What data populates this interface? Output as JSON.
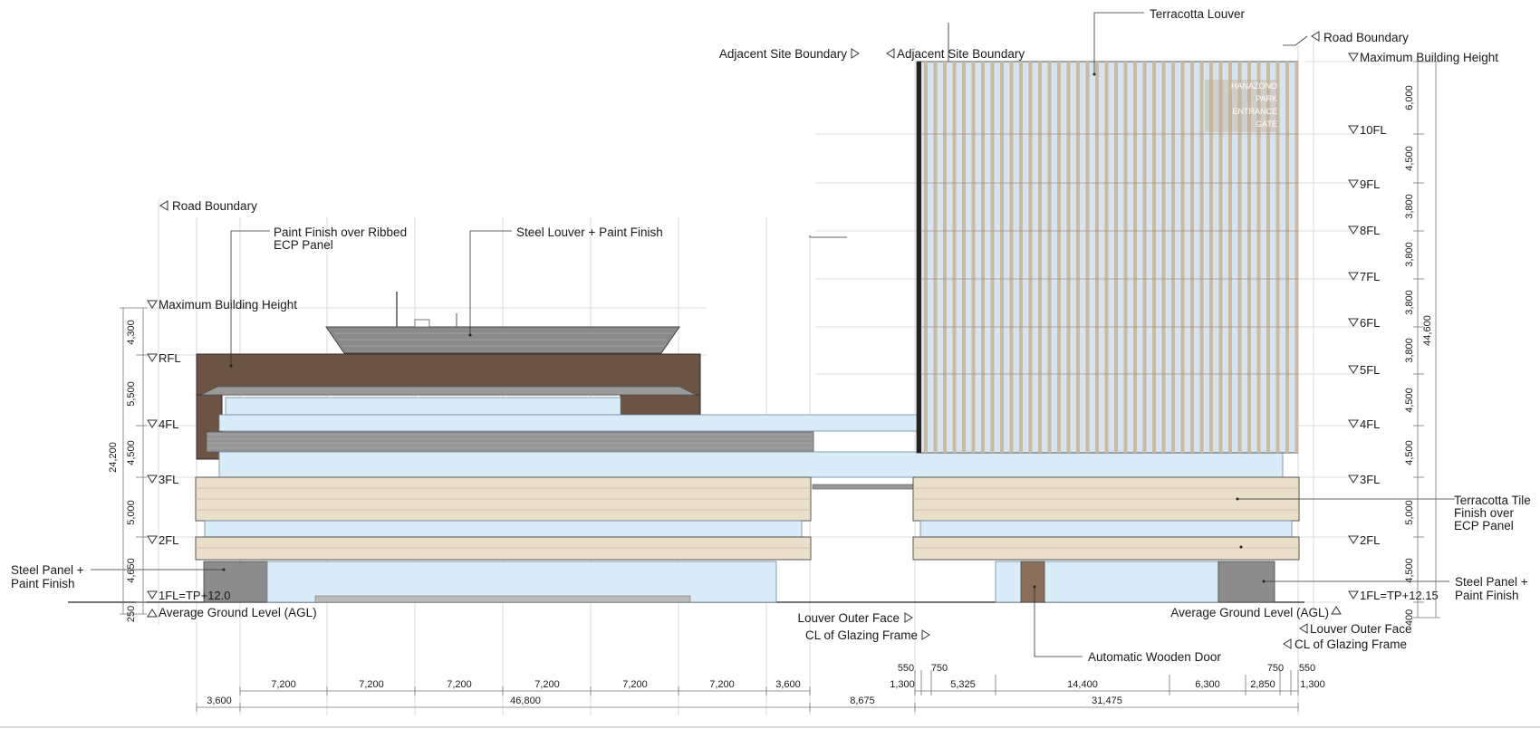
{
  "colors": {
    "glass": "#d9ebf6",
    "terracotta_tile": "#eadfcb",
    "brown_panel": "#6b5444",
    "tower_louver": "#ccb9a1",
    "steel_panel": "#8c8c8c",
    "wood_door": "#8a6e5a"
  },
  "annotations": {
    "road_boundary_left": "Road Boundary",
    "paint_finish_line1": "Paint Finish over Ribbed",
    "paint_finish_line2": "ECP Panel",
    "steel_louver": "Steel Louver + Paint Finish",
    "adjacent_site_left": "Adjacent Site Boundary",
    "adjacent_site_right": "Adjacent Site Boundary",
    "terracotta_louver": "Terracotta Louver",
    "road_boundary_right": "Road Boundary",
    "max_height_right": "Maximum Building Height",
    "max_height_left": "Maximum Building Height",
    "terracotta_tile_line1": "Terracotta Tile",
    "terracotta_tile_line2": "Finish over",
    "terracotta_tile_line3": "ECP Panel",
    "steel_panel_left_line1": "Steel Panel +",
    "steel_panel_left_line2": "Paint Finish",
    "steel_panel_right_line1": "Steel Panel +",
    "steel_panel_right_line2": "Paint Finish",
    "agl_left": "Average Ground Level (AGL)",
    "agl_right": "Average Ground Level (AGL)",
    "louver_outer_face_left": "Louver Outer Face",
    "cl_glazing_left": "CL of Glazing Frame",
    "louver_outer_face_right": "Louver Outer Face",
    "cl_glazing_right": "CL of Glazing Frame",
    "automatic_wooden_door": "Automatic Wooden Door"
  },
  "levels_left": {
    "rfl": "RFL",
    "fl4": "4FL",
    "fl3": "3FL",
    "fl2": "2FL",
    "fl1": "1FL=TP+12.0"
  },
  "levels_right": {
    "fl10": "10FL",
    "fl9": "9FL",
    "fl8": "8FL",
    "fl7": "7FL",
    "fl6": "6FL",
    "fl5": "5FL",
    "fl4": "4FL",
    "fl3": "3FL",
    "fl2": "2FL",
    "fl1": "1FL=TP+12.15"
  },
  "dims_left_vertical": {
    "d4300": "4,300",
    "d5500": "5,500",
    "d4500": "4,500",
    "d5000": "5,000",
    "d4650": "4,650",
    "d250": "250",
    "total": "24,200"
  },
  "dims_right_vertical": {
    "d6000": "6,000",
    "d4500a": "4,500",
    "d3800a": "3,800",
    "d3800b": "3,800",
    "d3800c": "3,800",
    "d3800d": "3,800",
    "d4500b": "4,500",
    "d4500c": "4,500",
    "d5000": "5,000",
    "d4500d": "4,500",
    "d400": "400",
    "total": "44,600"
  },
  "dims_bottom_row1": {
    "a1": "7,200",
    "a2": "7,200",
    "a3": "7,200",
    "a4": "7,200",
    "a5": "7,200",
    "a6": "7,200",
    "a7": "3,600",
    "b550": "550",
    "b750": "750",
    "b1300": "1,300",
    "b5325": "5,325",
    "b14400": "14,400",
    "b6300": "6,300",
    "b750r": "750",
    "b2850": "2,850",
    "b550r": "550",
    "b1300r": "1,300"
  },
  "dims_bottom_row2": {
    "c3600": "3,600",
    "c46800": "46,800",
    "c8675": "8,675",
    "c31475": "31,475"
  },
  "sign_text": [
    "HANAZONO",
    "PARK",
    "ENTRANCE",
    "GATE"
  ]
}
